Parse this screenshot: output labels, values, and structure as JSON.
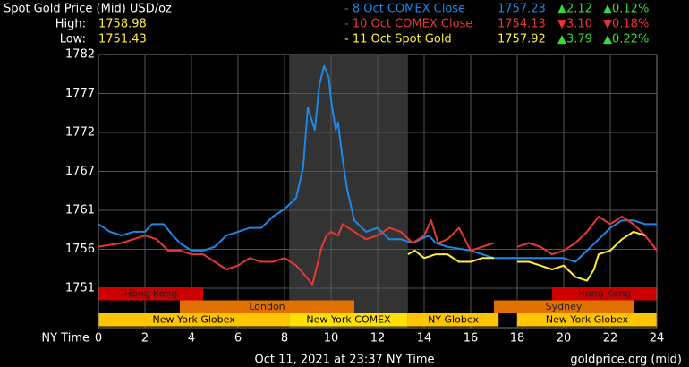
{
  "chart_data": {
    "type": "line",
    "title": "Spot Gold Price (Mid) USD/oz",
    "high_label": "High:",
    "high": "1758.98",
    "low_label": "Low:",
    "low": "1751.43",
    "xlabel": "NY Time",
    "footer": "Oct 11, 2021 at 23:37 NY Time",
    "source": "goldprice.org (mid)",
    "xlim": [
      0,
      24
    ],
    "xticks": [
      0,
      2,
      4,
      6,
      8,
      10,
      12,
      14,
      16,
      18,
      20,
      22,
      24
    ],
    "ylim": [
      1751,
      1782
    ],
    "yticks": [
      1751,
      {
        "value": 1756.17,
        "label": "1756"
      },
      {
        "value": 1761.33,
        "label": "1761"
      },
      {
        "value": 1766.5,
        "label": "1767"
      },
      {
        "value": 1771.67,
        "label": "1772"
      },
      {
        "value": 1776.83,
        "label": "1777"
      },
      1782
    ],
    "grid": true,
    "highlight": [
      8.2,
      13.3
    ],
    "legend": [
      {
        "name": "- 8 Oct COMEX Close",
        "color": "#1e88e5",
        "price": "1757.23",
        "change": "▲2.12",
        "pct": "▲0.12%",
        "dir": "up"
      },
      {
        "name": "- 10 Oct COMEX Close",
        "color": "#e53935",
        "price": "1754.13",
        "change": "▼3.10",
        "pct": "▼0.18%",
        "dir": "down"
      },
      {
        "name": "- 11 Oct Spot Gold",
        "color": "#ffee33",
        "price": "1757.92",
        "change": "▲3.79",
        "pct": "▲0.22%",
        "dir": "up"
      }
    ],
    "series": [
      {
        "name": "8 Oct COMEX Close",
        "color": "#1e88e5",
        "x": [
          0,
          0.5,
          1,
          1.5,
          2,
          2.3,
          2.8,
          3.2,
          3.5,
          4,
          4.5,
          5,
          5.5,
          6,
          6.5,
          7,
          7.5,
          8,
          8.5,
          8.8,
          9,
          9.3,
          9.5,
          9.7,
          9.9,
          10,
          10.2,
          10.3,
          10.5,
          10.7,
          11,
          11.5,
          12,
          12.5,
          13,
          13.5,
          14.2,
          14.5,
          15,
          16,
          17,
          18,
          19,
          20,
          20.5,
          21,
          21.5,
          22,
          22.5,
          23,
          23.5,
          24
        ],
        "values": [
          1759.5,
          1758.5,
          1758,
          1758.5,
          1758.5,
          1759.5,
          1759.5,
          1758,
          1757,
          1756,
          1756,
          1756.5,
          1758,
          1758.5,
          1759,
          1759,
          1760.5,
          1761.5,
          1763,
          1767,
          1775,
          1772,
          1778,
          1780.5,
          1779,
          1776,
          1772,
          1773,
          1768,
          1764,
          1760,
          1758.5,
          1759,
          1757.5,
          1757.5,
          1757,
          1758,
          1757,
          1756.5,
          1756,
          1755,
          1755,
          1755,
          1755,
          1754.5,
          1756,
          1757.5,
          1759,
          1760,
          1760,
          1759.5,
          1759.5
        ]
      },
      {
        "name": "10 Oct COMEX Close",
        "color": "#e53935",
        "x": [
          0,
          1,
          1.5,
          2,
          2.5,
          3,
          3.5,
          4,
          4.5,
          5,
          5.5,
          6,
          6.5,
          7,
          7.5,
          8,
          8.5,
          8.8,
          9.2,
          9.4,
          9.6,
          9.8,
          10,
          10.3,
          10.5,
          11,
          11.5,
          12,
          12.5,
          13,
          13.5,
          14,
          14.3,
          14.6,
          15,
          15.5,
          16,
          16.5,
          17,
          17.5,
          18,
          18.5,
          19,
          19.5,
          20,
          20.5,
          21,
          21.5,
          22,
          22.5,
          23,
          23.5,
          24
        ],
        "values": [
          1756.5,
          1757,
          1757.5,
          1758,
          1757.5,
          1756,
          1756,
          1755.5,
          1755.5,
          1754.5,
          1753.5,
          1754,
          1755,
          1754.5,
          1754.5,
          1755,
          1754,
          1753,
          1751.5,
          1754,
          1756.5,
          1758,
          1758.5,
          1758,
          1759.5,
          1758.5,
          1757.5,
          1758,
          1759,
          1758.5,
          1757,
          1758,
          1760,
          1757,
          1757.5,
          1759,
          1756,
          1756.5,
          1757,
          null,
          1756.5,
          1757,
          1756.5,
          1755.5,
          1756,
          1757,
          1758.5,
          1760.5,
          1759.5,
          1760.5,
          1759.5,
          1758,
          1756
        ]
      },
      {
        "name": "11 Oct Spot Gold",
        "color": "#ffee33",
        "x": [
          13.3,
          13.6,
          14,
          14.5,
          15,
          15.5,
          16,
          16.5,
          17,
          17.5,
          18,
          18.5,
          19,
          19.5,
          20,
          20.5,
          21,
          21.3,
          21.5,
          22,
          22.5,
          23,
          23.5
        ],
        "values": [
          1755.5,
          1756,
          1755,
          1755.5,
          1755.5,
          1754.5,
          1754.5,
          1755,
          1755,
          null,
          1754.5,
          1754.5,
          1754,
          1753.5,
          1754,
          1752.5,
          1752,
          1753.5,
          1755.5,
          1756,
          1757.5,
          1758.5,
          1758
        ]
      }
    ],
    "session_rows": [
      [
        {
          "name": "Hong Kong",
          "start": 0,
          "end": 4.5,
          "color": "#cc0000"
        },
        {
          "name": "Hong Kong",
          "start": 19.5,
          "end": 24,
          "color": "#cc0000"
        }
      ],
      [
        {
          "name": "London",
          "start": 3.5,
          "end": 11,
          "color": "#e07000"
        },
        {
          "name": "Sydney",
          "start": 17,
          "end": 23,
          "color": "#e07000"
        }
      ],
      [
        {
          "name": "New York Globex",
          "start": 0,
          "end": 8.2,
          "color": "#ffc400"
        },
        {
          "name": "New York COMEX",
          "start": 8.2,
          "end": 13.3,
          "color": "#ffe000"
        },
        {
          "name": "NY Globex",
          "start": 13.3,
          "end": 17.2,
          "color": "#ffc400"
        },
        {
          "name": "New York Globex",
          "start": 18,
          "end": 24,
          "color": "#ffc400"
        }
      ]
    ]
  }
}
